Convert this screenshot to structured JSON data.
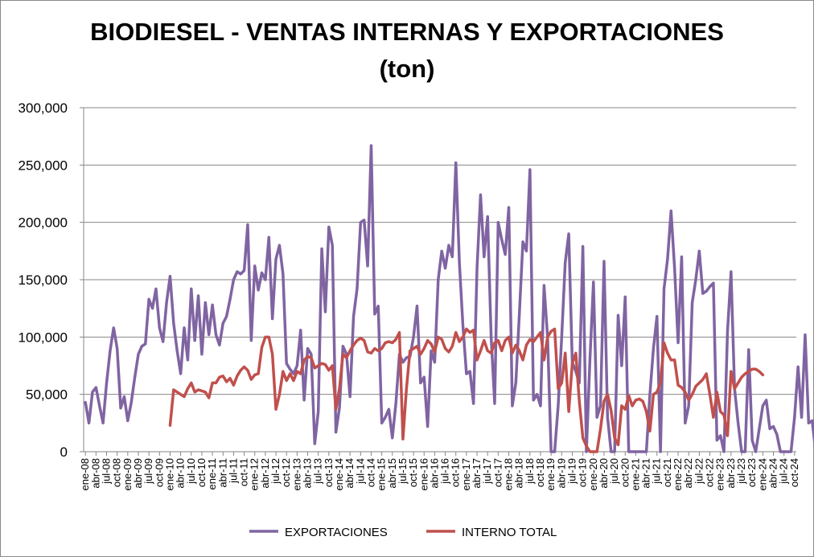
{
  "chart_data": {
    "type": "line",
    "title": "BIODIESEL - VENTAS INTERNAS Y EXPORTACIONES",
    "subtitle": "(ton)",
    "xlabel": "",
    "ylabel": "",
    "ylim": [
      0,
      300000
    ],
    "y_ticks": [
      "0",
      "50,000",
      "100,000",
      "150,000",
      "200,000",
      "250,000",
      "300,000"
    ],
    "x_tick_labels": [
      "ene-08",
      "abr-08",
      "jul-08",
      "oct-08",
      "ene-09",
      "abr-09",
      "jul-09",
      "oct-09",
      "ene-10",
      "abr-10",
      "jul-10",
      "oct-10",
      "ene-11",
      "abr-11",
      "jul-11",
      "oct-11",
      "ene-12",
      "abr-12",
      "jul-12",
      "oct-12",
      "ene-13",
      "abr-13",
      "jul-13",
      "oct-13",
      "ene-14",
      "abr-14",
      "jul-14",
      "oct-14",
      "ene-15",
      "abr-15",
      "jul-15",
      "oct-15",
      "ene-16",
      "abr-16",
      "jul-16",
      "oct-16",
      "ene-17",
      "abr-17",
      "jul-17",
      "oct-17",
      "ene-18",
      "abr-18",
      "jul-18",
      "oct-18",
      "ene-19",
      "abr-19",
      "jul-19",
      "oct-19",
      "ene-20",
      "abr-20",
      "jul-20",
      "oct-20",
      "ene-21",
      "abr-21",
      "jul-21",
      "oct-21",
      "ene-22",
      "abr-22",
      "jul-22",
      "oct-22",
      "ene-23",
      "abr-23",
      "jul-23",
      "oct-23",
      "ene-24",
      "abr-24",
      "jul-24",
      "oct-24"
    ],
    "grid": "horizontal",
    "legend": "bottom",
    "series": [
      {
        "name": "EXPORTACIONES",
        "color": "#8064A2",
        "start_index": 0,
        "values": [
          43000,
          25000,
          52000,
          56000,
          40000,
          25000,
          60000,
          88000,
          108000,
          90000,
          38000,
          48000,
          27000,
          43000,
          65000,
          85000,
          92000,
          94000,
          133000,
          125000,
          142000,
          108000,
          96000,
          130000,
          153000,
          112000,
          88000,
          68000,
          108000,
          80000,
          142000,
          97000,
          136000,
          85000,
          130000,
          102000,
          128000,
          102000,
          93000,
          112000,
          118000,
          133000,
          150000,
          157000,
          155000,
          158000,
          198000,
          97000,
          162000,
          141000,
          156000,
          150000,
          187000,
          116000,
          168000,
          180000,
          155000,
          77000,
          72000,
          68000,
          75000,
          106000,
          45000,
          90000,
          85000,
          7000,
          35000,
          177000,
          122000,
          196000,
          180000,
          17000,
          38000,
          92000,
          85000,
          48000,
          118000,
          142000,
          200000,
          202000,
          162000,
          267000,
          120000,
          127000,
          25000,
          30000,
          37000,
          12000,
          42000,
          85000,
          78000,
          82000,
          83000,
          100000,
          127000,
          60000,
          65000,
          22000,
          88000,
          78000,
          150000,
          175000,
          160000,
          180000,
          170000,
          252000,
          165000,
          110000,
          68000,
          70000,
          42000,
          160000,
          224000,
          170000,
          205000,
          100000,
          42000,
          200000,
          185000,
          172000,
          213000,
          40000,
          60000,
          120000,
          183000,
          175000,
          246000,
          45000,
          50000,
          40000,
          145000,
          100000,
          0,
          0,
          40000,
          100000,
          165000,
          190000,
          78000,
          70000,
          60000,
          179000,
          0,
          80000,
          148000,
          30000,
          40000,
          166000,
          30000,
          0,
          0,
          119000,
          75000,
          135000,
          0,
          0,
          0,
          0,
          0,
          0,
          50000,
          90000,
          118000,
          0,
          142000,
          168000,
          210000,
          160000,
          95000,
          170000,
          25000,
          40000,
          130000,
          150000,
          175000,
          138000,
          140000,
          144000,
          147000,
          10000,
          14000,
          0,
          105000,
          157000,
          55000,
          25000,
          0,
          0,
          89000,
          10000,
          0,
          20000,
          40000,
          45000,
          20000,
          22000,
          15000,
          0,
          0,
          0,
          0,
          30000,
          74000,
          30000,
          102000,
          25000,
          27000,
          0
        ]
      },
      {
        "name": "INTERNO TOTAL",
        "color": "#C0504D",
        "start_index": 24,
        "values": [
          23000,
          54000,
          52000,
          50000,
          48000,
          55000,
          60000,
          52000,
          54000,
          53000,
          52000,
          47000,
          60000,
          60000,
          65000,
          66000,
          61000,
          64000,
          58000,
          66000,
          71000,
          74000,
          71000,
          63000,
          67000,
          68000,
          91000,
          100000,
          100000,
          85000,
          37000,
          50000,
          70000,
          62000,
          68000,
          62000,
          70000,
          68000,
          80000,
          83000,
          82000,
          73000,
          75000,
          77000,
          76000,
          71000,
          75000,
          37000,
          55000,
          85000,
          82000,
          88000,
          93000,
          97000,
          99000,
          97000,
          87000,
          86000,
          90000,
          88000,
          90000,
          95000,
          96000,
          95000,
          98000,
          104000,
          11000,
          55000,
          88000,
          90000,
          92000,
          85000,
          90000,
          97000,
          94000,
          87000,
          100000,
          98000,
          90000,
          87000,
          92000,
          104000,
          96000,
          100000,
          107000,
          104000,
          106000,
          80000,
          88000,
          97000,
          88000,
          86000,
          95000,
          97000,
          88000,
          97000,
          100000,
          86000,
          93000,
          88000,
          80000,
          93000,
          98000,
          96000,
          100000,
          104000,
          80000,
          100000,
          105000,
          107000,
          55000,
          60000,
          86000,
          35000,
          77000,
          86000,
          44000,
          12000,
          5000,
          0,
          0,
          0,
          20000,
          44000,
          50000,
          36000,
          12000,
          6000,
          40000,
          37000,
          49000,
          40000,
          45000,
          46000,
          44000,
          35000,
          18000,
          50000,
          52000,
          60000,
          95000,
          86000,
          80000,
          80000,
          58000,
          56000,
          52000,
          45000,
          50000,
          57000,
          60000,
          63000,
          68000,
          50000,
          30000,
          52000,
          35000,
          32000,
          14000,
          70000,
          55000,
          60000,
          65000,
          68000,
          70000,
          72000,
          72000,
          70000,
          67000
        ]
      }
    ]
  }
}
